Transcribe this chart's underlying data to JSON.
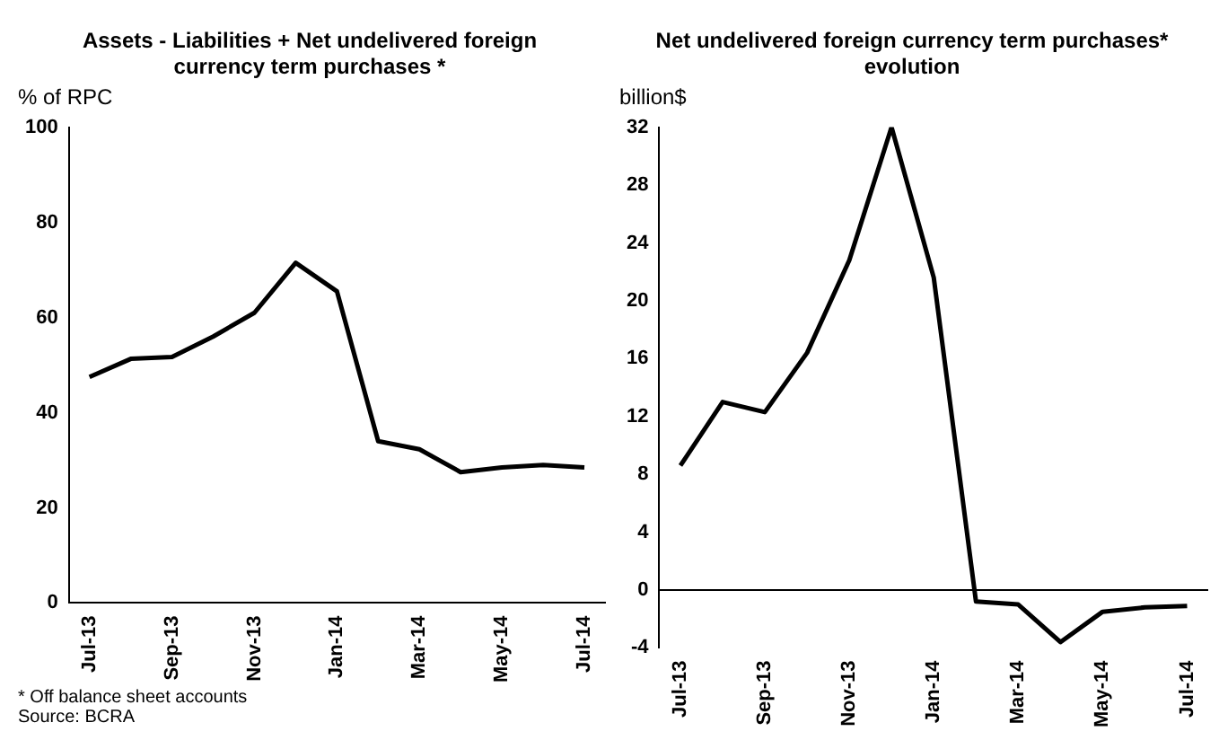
{
  "chart_data": [
    {
      "type": "line",
      "title": "Assets - Liabilities + Net undelivered foreign currency term purchases *",
      "ylabel": "% of RPC",
      "categories": [
        "Jul-13",
        null,
        "Sep-13",
        null,
        "Nov-13",
        null,
        "Jan-14",
        null,
        "Mar-14",
        null,
        "May-14",
        null,
        "Jul-14"
      ],
      "values": [
        47.5,
        51.3,
        51.7,
        56,
        61,
        71.5,
        65.5,
        34,
        32.3,
        27.5,
        28.5,
        29,
        28.5
      ],
      "color": "#000000",
      "ylim": [
        0,
        100
      ],
      "yticks": [
        0,
        20,
        40,
        60,
        80,
        100
      ],
      "marker": "none",
      "line_style": "solid",
      "annotations": [
        "* Off balance sheet accounts",
        "Source: BCRA"
      ]
    },
    {
      "type": "line",
      "title": "Net undelivered foreign currency term purchases* evolution",
      "ylabel": "billion$",
      "categories": [
        "Jul-13",
        null,
        "Sep-13",
        null,
        "Nov-13",
        null,
        "Jan-14",
        null,
        "Mar-14",
        null,
        "May-14",
        null,
        "Jul-14"
      ],
      "values": [
        8.6,
        13,
        12.3,
        16.4,
        22.8,
        32,
        21.6,
        -0.8,
        -1,
        -3.6,
        -1.5,
        -1.2,
        -1.1
      ],
      "color": "#000000",
      "ylim": [
        -4,
        32
      ],
      "yticks": [
        -4,
        0,
        4,
        8,
        12,
        16,
        20,
        24,
        28,
        32
      ],
      "marker": "none",
      "line_style": "solid"
    }
  ]
}
